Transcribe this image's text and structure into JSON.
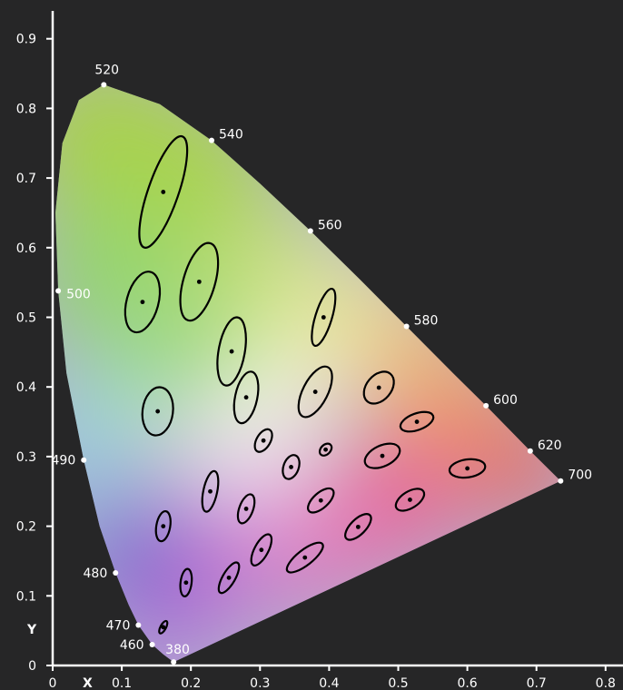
{
  "colors": {
    "background": "#262627",
    "axis": "#ffffff",
    "ellipse_stroke": "#000000",
    "marker": "#ffffff"
  },
  "chart_data": {
    "type": "scatter",
    "title": "",
    "xlabel": "X",
    "ylabel": "Y",
    "xlim": [
      0,
      0.8
    ],
    "ylim": [
      0,
      0.9
    ],
    "xticks": [
      "0",
      "0.1",
      "0.2",
      "0.3",
      "0.4",
      "0.5",
      "0.6",
      "0.7",
      "0.8"
    ],
    "yticks": [
      "0",
      "0.1",
      "0.2",
      "0.3",
      "0.4",
      "0.5",
      "0.6",
      "0.7",
      "0.8",
      "0.9"
    ],
    "grid": false,
    "spectral_locus": {
      "markers": [
        {
          "label": "380",
          "x": 0.175,
          "y": 0.005
        },
        {
          "label": "460",
          "x": 0.144,
          "y": 0.03
        },
        {
          "label": "470",
          "x": 0.124,
          "y": 0.058
        },
        {
          "label": "480",
          "x": 0.091,
          "y": 0.133
        },
        {
          "label": "490",
          "x": 0.045,
          "y": 0.295
        },
        {
          "label": "500",
          "x": 0.008,
          "y": 0.538
        },
        {
          "label": "520",
          "x": 0.074,
          "y": 0.834
        },
        {
          "label": "540",
          "x": 0.23,
          "y": 0.754
        },
        {
          "label": "560",
          "x": 0.373,
          "y": 0.624
        },
        {
          "label": "580",
          "x": 0.512,
          "y": 0.487
        },
        {
          "label": "600",
          "x": 0.627,
          "y": 0.373
        },
        {
          "label": "620",
          "x": 0.691,
          "y": 0.308
        },
        {
          "label": "700",
          "x": 0.735,
          "y": 0.265
        }
      ]
    },
    "ellipses": [
      {
        "x": 0.16,
        "y": 0.68,
        "a": 0.085,
        "b": 0.022,
        "angle": 71
      },
      {
        "x": 0.212,
        "y": 0.551,
        "a": 0.058,
        "b": 0.023,
        "angle": 74
      },
      {
        "x": 0.13,
        "y": 0.522,
        "a": 0.045,
        "b": 0.023,
        "angle": 75
      },
      {
        "x": 0.259,
        "y": 0.451,
        "a": 0.05,
        "b": 0.019,
        "angle": 80
      },
      {
        "x": 0.392,
        "y": 0.5,
        "a": 0.043,
        "b": 0.012,
        "angle": 73
      },
      {
        "x": 0.152,
        "y": 0.365,
        "a": 0.035,
        "b": 0.022,
        "angle": 83
      },
      {
        "x": 0.28,
        "y": 0.385,
        "a": 0.038,
        "b": 0.016,
        "angle": 78
      },
      {
        "x": 0.38,
        "y": 0.393,
        "a": 0.04,
        "b": 0.018,
        "angle": 63
      },
      {
        "x": 0.472,
        "y": 0.399,
        "a": 0.026,
        "b": 0.018,
        "angle": 50
      },
      {
        "x": 0.527,
        "y": 0.35,
        "a": 0.025,
        "b": 0.012,
        "angle": 20
      },
      {
        "x": 0.305,
        "y": 0.323,
        "a": 0.018,
        "b": 0.01,
        "angle": 60
      },
      {
        "x": 0.395,
        "y": 0.31,
        "a": 0.01,
        "b": 0.007,
        "angle": 45
      },
      {
        "x": 0.477,
        "y": 0.301,
        "a": 0.027,
        "b": 0.015,
        "angle": 25
      },
      {
        "x": 0.6,
        "y": 0.283,
        "a": 0.026,
        "b": 0.013,
        "angle": 8
      },
      {
        "x": 0.345,
        "y": 0.285,
        "a": 0.018,
        "b": 0.011,
        "angle": 70
      },
      {
        "x": 0.228,
        "y": 0.25,
        "a": 0.03,
        "b": 0.01,
        "angle": 78
      },
      {
        "x": 0.28,
        "y": 0.225,
        "a": 0.022,
        "b": 0.01,
        "angle": 70
      },
      {
        "x": 0.388,
        "y": 0.237,
        "a": 0.023,
        "b": 0.011,
        "angle": 42
      },
      {
        "x": 0.517,
        "y": 0.238,
        "a": 0.023,
        "b": 0.012,
        "angle": 32
      },
      {
        "x": 0.16,
        "y": 0.2,
        "a": 0.022,
        "b": 0.01,
        "angle": 80
      },
      {
        "x": 0.442,
        "y": 0.199,
        "a": 0.024,
        "b": 0.011,
        "angle": 45
      },
      {
        "x": 0.302,
        "y": 0.166,
        "a": 0.025,
        "b": 0.01,
        "angle": 62
      },
      {
        "x": 0.365,
        "y": 0.155,
        "a": 0.032,
        "b": 0.011,
        "angle": 38
      },
      {
        "x": 0.255,
        "y": 0.126,
        "a": 0.025,
        "b": 0.009,
        "angle": 60
      },
      {
        "x": 0.193,
        "y": 0.119,
        "a": 0.02,
        "b": 0.008,
        "angle": 83
      },
      {
        "x": 0.16,
        "y": 0.055,
        "a": 0.01,
        "b": 0.004,
        "angle": 62
      }
    ]
  }
}
